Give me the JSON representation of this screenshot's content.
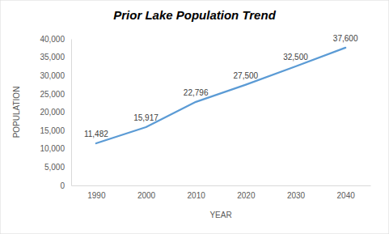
{
  "chart_data": {
    "type": "line",
    "title": "Prior Lake Population Trend",
    "x_label": "YEAR",
    "y_label": "POPULATION",
    "categories": [
      "1990",
      "2000",
      "2010",
      "2020",
      "2030",
      "2040"
    ],
    "values": [
      11482,
      15917,
      22796,
      27500,
      32500,
      37600
    ],
    "value_labels": [
      "11,482",
      "15,917",
      "22,796",
      "27,500",
      "32,500",
      "37,600"
    ],
    "color": "#5b9bd5",
    "ylim": [
      0,
      40000
    ],
    "yticks": [
      0,
      {
        "value": 5000,
        "label": "5,000"
      },
      {
        "value": 10000,
        "label": "10,000"
      },
      {
        "value": 15000,
        "label": "15,000"
      },
      {
        "value": 20000,
        "label": "20,000"
      },
      {
        "value": 25000,
        "label": "25,000"
      },
      {
        "value": 30000,
        "label": "30,000"
      },
      {
        "value": 35000,
        "label": "35,000"
      },
      {
        "value": 40000,
        "label": "40,000"
      }
    ],
    "grid": false,
    "data_labels": true
  }
}
